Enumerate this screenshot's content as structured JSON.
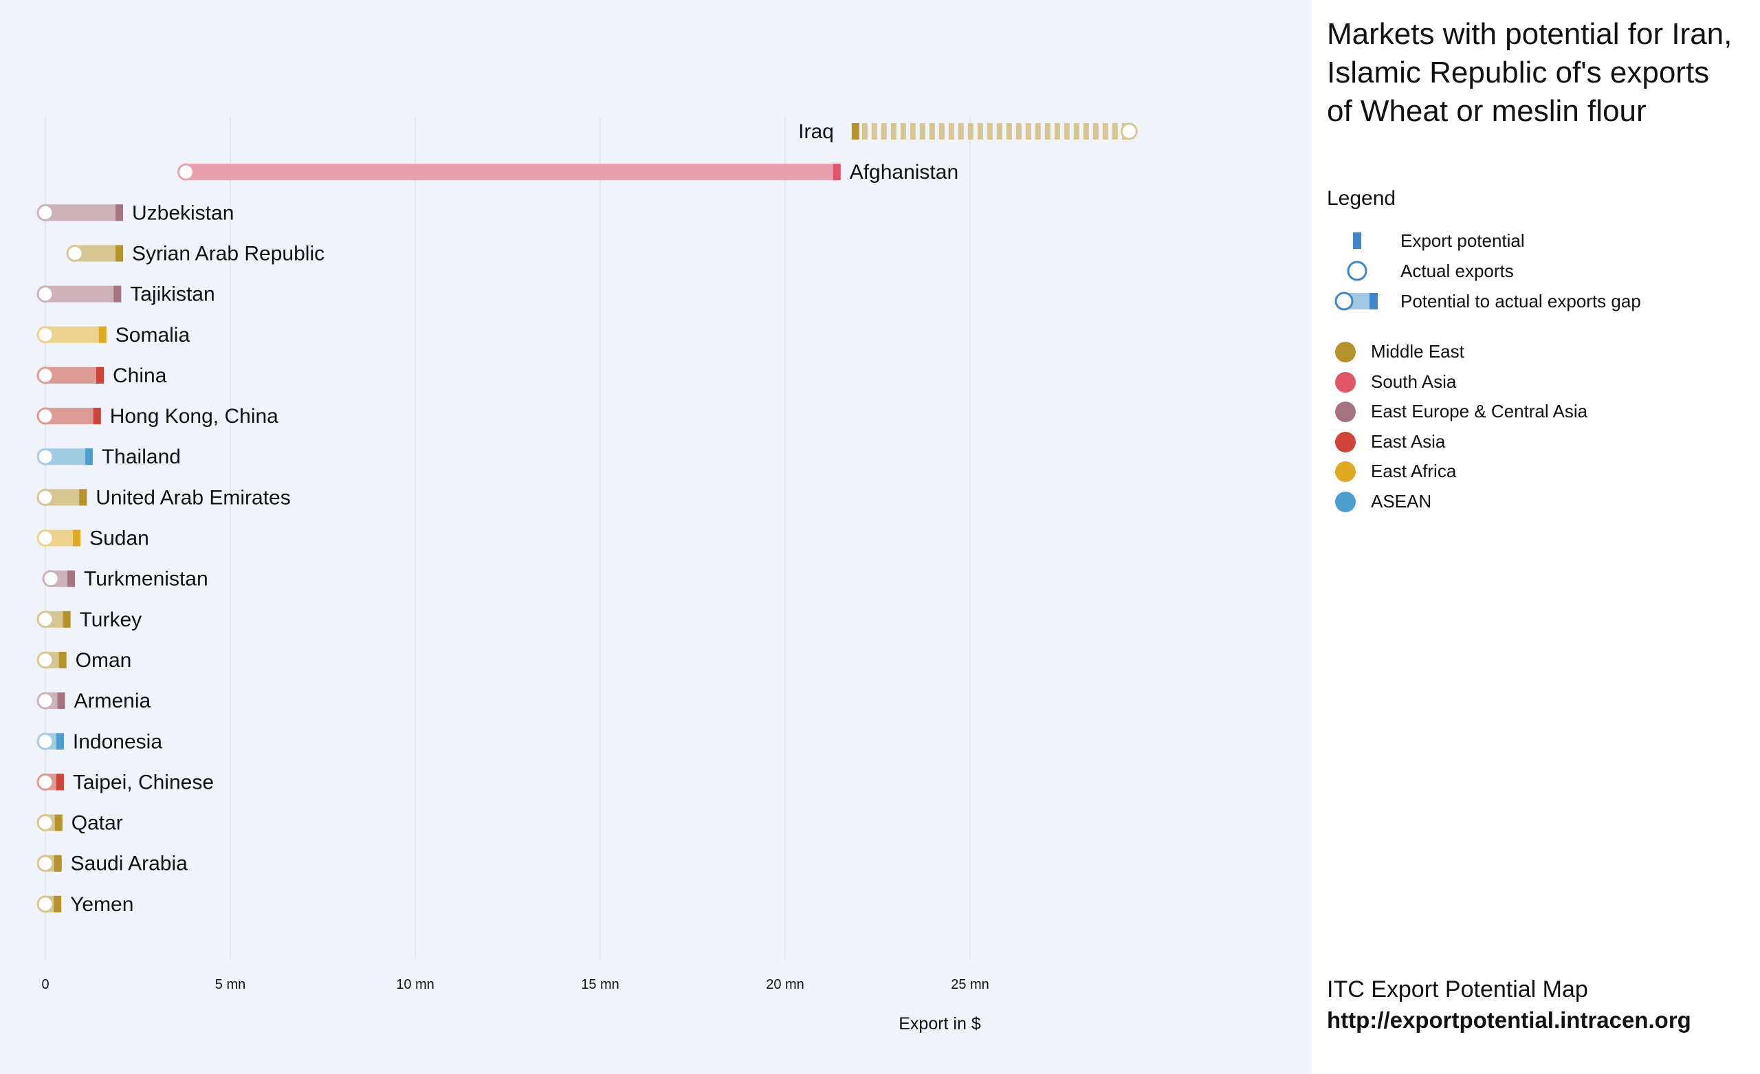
{
  "chart_data": {
    "type": "bar",
    "subtype": "dumbbell-gap",
    "title": "Markets with potential for Iran, Islamic Republic of's exports of Wheat or meslin flour",
    "xlabel": "Export in $",
    "xlim": [
      0,
      34000000
    ],
    "xticks": [
      {
        "value": 0,
        "label": "0"
      },
      {
        "value": 5000000,
        "label": "5 mn"
      },
      {
        "value": 10000000,
        "label": "10 mn"
      },
      {
        "value": 15000000,
        "label": "15 mn"
      },
      {
        "value": 20000000,
        "label": "20 mn"
      },
      {
        "value": 25000000,
        "label": "25 mn"
      }
    ],
    "grid": true,
    "regions": [
      {
        "name": "Middle East",
        "color": "#b5922a",
        "light": "#d6c792"
      },
      {
        "name": "South Asia",
        "color": "#e05568",
        "light": "#e8a0ad"
      },
      {
        "name": "East Europe & Central Asia",
        "color": "#a57480",
        "light": "#cdb2ba"
      },
      {
        "name": "East Asia",
        "color": "#cf4438",
        "light": "#dd9b95"
      },
      {
        "name": "East Africa",
        "color": "#deaa22",
        "light": "#ebd38f"
      },
      {
        "name": "ASEAN",
        "color": "#4f9fce",
        "light": "#a2cbe4"
      }
    ],
    "series": [
      {
        "name": "Iraq",
        "region": "Middle East",
        "potential": 21800000,
        "actual": 29300000
      },
      {
        "name": "Afghanistan",
        "region": "South Asia",
        "potential": 21500000,
        "actual": 3800000
      },
      {
        "name": "Uzbekistan",
        "region": "East Europe & Central Asia",
        "potential": 2100000,
        "actual": 0
      },
      {
        "name": "Syrian Arab Republic",
        "region": "Middle East",
        "potential": 2100000,
        "actual": 800000
      },
      {
        "name": "Tajikistan",
        "region": "East Europe & Central Asia",
        "potential": 2050000,
        "actual": 0
      },
      {
        "name": "Somalia",
        "region": "East Africa",
        "potential": 1650000,
        "actual": 0
      },
      {
        "name": "China",
        "region": "East Asia",
        "potential": 1580000,
        "actual": 0
      },
      {
        "name": "Hong Kong, China",
        "region": "East Asia",
        "potential": 1500000,
        "actual": 0
      },
      {
        "name": "Thailand",
        "region": "ASEAN",
        "potential": 1280000,
        "actual": 0
      },
      {
        "name": "United Arab Emirates",
        "region": "Middle East",
        "potential": 1120000,
        "actual": 0
      },
      {
        "name": "Sudan",
        "region": "East Africa",
        "potential": 950000,
        "actual": 0
      },
      {
        "name": "Turkmenistan",
        "region": "East Europe & Central Asia",
        "potential": 800000,
        "actual": 150000
      },
      {
        "name": "Turkey",
        "region": "Middle East",
        "potential": 680000,
        "actual": 0
      },
      {
        "name": "Oman",
        "region": "Middle East",
        "potential": 570000,
        "actual": 0
      },
      {
        "name": "Armenia",
        "region": "East Europe & Central Asia",
        "potential": 530000,
        "actual": 0
      },
      {
        "name": "Indonesia",
        "region": "ASEAN",
        "potential": 500000,
        "actual": 0
      },
      {
        "name": "Taipei, Chinese",
        "region": "East Asia",
        "potential": 500000,
        "actual": 0
      },
      {
        "name": "Qatar",
        "region": "Middle East",
        "potential": 460000,
        "actual": 0
      },
      {
        "name": "Saudi Arabia",
        "region": "Middle East",
        "potential": 440000,
        "actual": 0
      },
      {
        "name": "Yemen",
        "region": "Middle East",
        "potential": 430000,
        "actual": 0
      }
    ]
  },
  "legend": {
    "heading": "Legend",
    "items": [
      {
        "label": "Export potential"
      },
      {
        "label": "Actual exports"
      },
      {
        "label": "Potential to actual exports gap"
      }
    ],
    "symbol_color": "#3f87c9",
    "symbol_light": "#a2c6e6"
  },
  "footer": {
    "line1": "ITC Export Potential Map",
    "line2": "http://exportpotential.intracen.org"
  }
}
